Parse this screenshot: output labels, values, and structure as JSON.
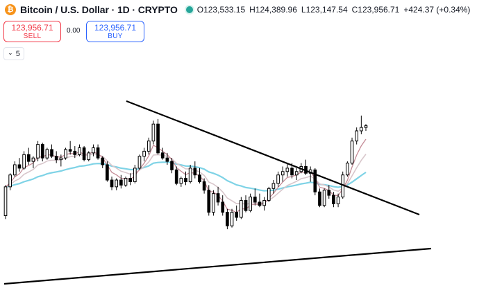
{
  "header": {
    "icon_glyph": "₿",
    "symbol_title": "Bitcoin / U.S. Dollar · 1D · CRYPTO",
    "status_color": "#26a69a",
    "ohlc": {
      "open": "O123,533.15",
      "high": "H124,389.96",
      "low": "L123,147.54",
      "close": "C123,956.71",
      "change": "+424.37 (+0.34%)"
    }
  },
  "trade": {
    "sell_price": "123,956.71",
    "sell_label": "SELL",
    "spread": "0.00",
    "buy_price": "123,956.71",
    "buy_label": "BUY"
  },
  "indicators": {
    "count": "5"
  },
  "colors": {
    "up_candle": "#ffffff",
    "down_candle": "#000000",
    "candle_outline": "#000000",
    "trendline": "#000000",
    "ma_fast": "#c48b96",
    "ma_mid": "#d8c6cb",
    "ma_slow": "#7fd3e6"
  },
  "chart_data": {
    "type": "candlestick",
    "y_axis": "price",
    "candles": [
      [
        0.3,
        0.48,
        0.28,
        0.47
      ],
      [
        0.47,
        0.55,
        0.45,
        0.54
      ],
      [
        0.54,
        0.62,
        0.53,
        0.6
      ],
      [
        0.6,
        0.64,
        0.56,
        0.58
      ],
      [
        0.58,
        0.68,
        0.57,
        0.66
      ],
      [
        0.66,
        0.7,
        0.6,
        0.62
      ],
      [
        0.62,
        0.65,
        0.58,
        0.64
      ],
      [
        0.64,
        0.74,
        0.62,
        0.72
      ],
      [
        0.72,
        0.73,
        0.62,
        0.64
      ],
      [
        0.64,
        0.7,
        0.63,
        0.69
      ],
      [
        0.69,
        0.72,
        0.64,
        0.65
      ],
      [
        0.65,
        0.68,
        0.61,
        0.63
      ],
      [
        0.63,
        0.66,
        0.59,
        0.64
      ],
      [
        0.64,
        0.7,
        0.63,
        0.69
      ],
      [
        0.69,
        0.74,
        0.66,
        0.68
      ],
      [
        0.68,
        0.71,
        0.64,
        0.66
      ],
      [
        0.66,
        0.72,
        0.65,
        0.7
      ],
      [
        0.7,
        0.71,
        0.62,
        0.63
      ],
      [
        0.63,
        0.68,
        0.62,
        0.67
      ],
      [
        0.67,
        0.72,
        0.65,
        0.7
      ],
      [
        0.7,
        0.72,
        0.63,
        0.64
      ],
      [
        0.64,
        0.65,
        0.58,
        0.6
      ],
      [
        0.6,
        0.62,
        0.5,
        0.51
      ],
      [
        0.51,
        0.53,
        0.45,
        0.47
      ],
      [
        0.47,
        0.52,
        0.45,
        0.51
      ],
      [
        0.51,
        0.54,
        0.46,
        0.48
      ],
      [
        0.48,
        0.53,
        0.47,
        0.52
      ],
      [
        0.52,
        0.55,
        0.48,
        0.5
      ],
      [
        0.5,
        0.6,
        0.49,
        0.58
      ],
      [
        0.58,
        0.66,
        0.57,
        0.65
      ],
      [
        0.65,
        0.7,
        0.62,
        0.68
      ],
      [
        0.68,
        0.76,
        0.66,
        0.74
      ],
      [
        0.74,
        0.86,
        0.72,
        0.84
      ],
      [
        0.84,
        0.87,
        0.66,
        0.67
      ],
      [
        0.67,
        0.7,
        0.63,
        0.64
      ],
      [
        0.64,
        0.67,
        0.6,
        0.62
      ],
      [
        0.62,
        0.64,
        0.55,
        0.57
      ],
      [
        0.57,
        0.59,
        0.48,
        0.49
      ],
      [
        0.49,
        0.53,
        0.47,
        0.52
      ],
      [
        0.52,
        0.56,
        0.48,
        0.5
      ],
      [
        0.5,
        0.6,
        0.49,
        0.58
      ],
      [
        0.58,
        0.62,
        0.52,
        0.54
      ],
      [
        0.54,
        0.58,
        0.49,
        0.5
      ],
      [
        0.5,
        0.52,
        0.43,
        0.45
      ],
      [
        0.45,
        0.48,
        0.3,
        0.32
      ],
      [
        0.32,
        0.45,
        0.3,
        0.43
      ],
      [
        0.43,
        0.47,
        0.36,
        0.38
      ],
      [
        0.38,
        0.42,
        0.3,
        0.32
      ],
      [
        0.32,
        0.34,
        0.22,
        0.24
      ],
      [
        0.24,
        0.34,
        0.23,
        0.32
      ],
      [
        0.32,
        0.36,
        0.27,
        0.29
      ],
      [
        0.29,
        0.41,
        0.28,
        0.39
      ],
      [
        0.39,
        0.42,
        0.32,
        0.33
      ],
      [
        0.33,
        0.43,
        0.32,
        0.41
      ],
      [
        0.41,
        0.46,
        0.36,
        0.38
      ],
      [
        0.38,
        0.43,
        0.35,
        0.36
      ],
      [
        0.36,
        0.41,
        0.33,
        0.39
      ],
      [
        0.39,
        0.47,
        0.38,
        0.46
      ],
      [
        0.46,
        0.51,
        0.43,
        0.49
      ],
      [
        0.49,
        0.56,
        0.47,
        0.54
      ],
      [
        0.54,
        0.59,
        0.5,
        0.56
      ],
      [
        0.56,
        0.61,
        0.53,
        0.58
      ],
      [
        0.58,
        0.61,
        0.52,
        0.54
      ],
      [
        0.54,
        0.58,
        0.51,
        0.56
      ],
      [
        0.56,
        0.61,
        0.55,
        0.59
      ],
      [
        0.59,
        0.63,
        0.54,
        0.55
      ],
      [
        0.55,
        0.59,
        0.5,
        0.57
      ],
      [
        0.57,
        0.58,
        0.42,
        0.44
      ],
      [
        0.44,
        0.46,
        0.35,
        0.36
      ],
      [
        0.36,
        0.46,
        0.35,
        0.45
      ],
      [
        0.45,
        0.48,
        0.4,
        0.42
      ],
      [
        0.42,
        0.44,
        0.35,
        0.37
      ],
      [
        0.37,
        0.43,
        0.35,
        0.41
      ],
      [
        0.41,
        0.56,
        0.4,
        0.54
      ],
      [
        0.54,
        0.62,
        0.53,
        0.61
      ],
      [
        0.61,
        0.76,
        0.6,
        0.74
      ],
      [
        0.74,
        0.82,
        0.72,
        0.8
      ],
      [
        0.8,
        0.89,
        0.78,
        0.82
      ],
      [
        0.82,
        0.84,
        0.8,
        0.83
      ]
    ]
  }
}
